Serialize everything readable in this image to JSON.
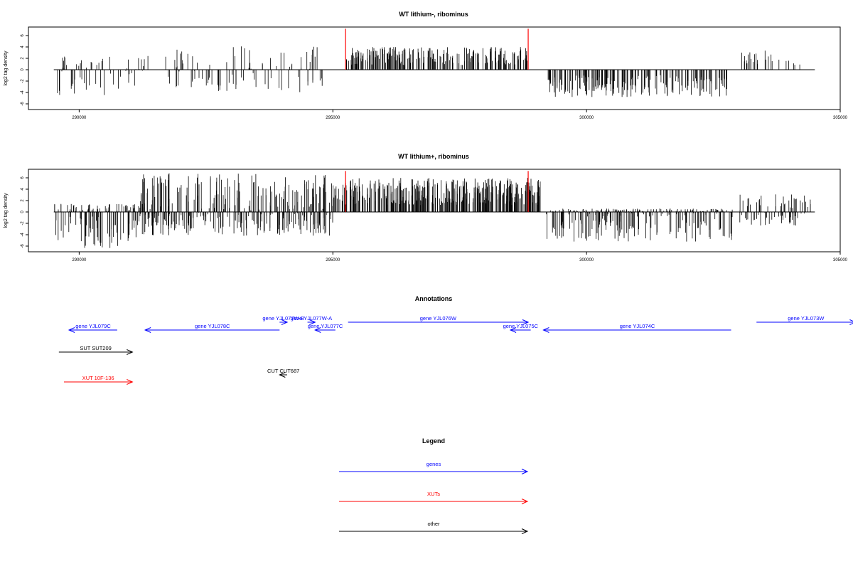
{
  "chart_data": [
    {
      "type": "bar",
      "title": "WT lithium-, ribominus",
      "ylabel": "log2 tag density",
      "xlabel": "",
      "xlim": [
        289000,
        305000
      ],
      "ylim": [
        -7,
        7.5
      ],
      "xticks": [
        "290000",
        "295000",
        "300000",
        "305000"
      ],
      "yticks": [
        "-6",
        "-4",
        "-2",
        "0",
        "2",
        "4",
        "6"
      ],
      "baseline": [
        289500,
        304500
      ],
      "markers": [
        295250,
        298850
      ],
      "segments": [
        {
          "from": 289500,
          "to": 291800,
          "min": -4.8,
          "max": 2.5,
          "density": 0.025,
          "seed": 11
        },
        {
          "from": 291800,
          "to": 294800,
          "min": -4.2,
          "max": 4.2,
          "density": 0.03,
          "seed": 23
        },
        {
          "from": 295200,
          "to": 298900,
          "min": 0,
          "max": 4.0,
          "density": 0.06,
          "seed": 37
        },
        {
          "from": 299200,
          "to": 302800,
          "min": -4.8,
          "max": 0,
          "density": 0.05,
          "seed": 41
        },
        {
          "from": 303050,
          "to": 304300,
          "min": 0,
          "max": 3.8,
          "density": 0.02,
          "seed": 53
        }
      ]
    },
    {
      "type": "bar",
      "title": "WT lithium+, ribominus",
      "ylabel": "log2 tag density",
      "xlabel": "",
      "xlim": [
        289000,
        305000
      ],
      "ylim": [
        -7,
        7.5
      ],
      "xticks": [
        "290000",
        "295000",
        "300000",
        "305000"
      ],
      "yticks": [
        "-6",
        "-4",
        "-2",
        "0",
        "2",
        "4",
        "6"
      ],
      "baseline": [
        289500,
        304500
      ],
      "markers": [
        295250,
        298850
      ],
      "segments": [
        {
          "from": 289500,
          "to": 291200,
          "min": -6.5,
          "max": 1.5,
          "density": 0.07,
          "seed": 61
        },
        {
          "from": 291200,
          "to": 295000,
          "min": -4.2,
          "max": 6.8,
          "density": 0.09,
          "seed": 67
        },
        {
          "from": 295000,
          "to": 299100,
          "min": 0,
          "max": 6.0,
          "density": 0.09,
          "seed": 71
        },
        {
          "from": 299200,
          "to": 302900,
          "min": -5.2,
          "max": 0.6,
          "density": 0.07,
          "seed": 79
        },
        {
          "from": 303000,
          "to": 304500,
          "min": -2.5,
          "max": 3.2,
          "density": 0.05,
          "seed": 83
        }
      ]
    }
  ],
  "annotations": {
    "title": "Annotations",
    "items": [
      {
        "label": "gene YJL079C",
        "color": "#0000ff",
        "from": 290750,
        "to": 289800,
        "row": 1
      },
      {
        "label": "gene YJL078C",
        "color": "#0000ff",
        "from": 293950,
        "to": 291300,
        "row": 1
      },
      {
        "label": "gene YJL077W-B",
        "color": "#0000ff",
        "from": 293950,
        "to": 294100,
        "row": 0
      },
      {
        "label": "gene YJL077W-A",
        "color": "#0000ff",
        "from": 294500,
        "to": 294650,
        "row": 0
      },
      {
        "label": "gene YJL077C",
        "color": "#0000ff",
        "from": 295050,
        "to": 294650,
        "row": 1
      },
      {
        "label": "gene YJL076W",
        "color": "#0000ff",
        "from": 295300,
        "to": 298850,
        "row": 0
      },
      {
        "label": "gene YJL075C",
        "color": "#0000ff",
        "from": 298900,
        "to": 298500,
        "row": 1
      },
      {
        "label": "gene YJL074C",
        "color": "#0000ff",
        "from": 302850,
        "to": 299150,
        "row": 1
      },
      {
        "label": "gene YJL073W",
        "color": "#0000ff",
        "from": 303350,
        "to": 305300,
        "row": 0
      },
      {
        "label": "SUT SUT209",
        "color": "#000000",
        "from": 289600,
        "to": 291050,
        "row": 2
      },
      {
        "label": "XUT 10F-136",
        "color": "#ff0000",
        "from": 289700,
        "to": 291050,
        "row": 4
      },
      {
        "label": "CUT CUT687",
        "color": "#000000",
        "from": 294100,
        "to": 293950,
        "row": 3
      }
    ]
  },
  "legend": {
    "title": "Legend",
    "items": [
      {
        "label": "genes",
        "color": "#0000ff"
      },
      {
        "label": "XUTs",
        "color": "#ff0000"
      },
      {
        "label": "other",
        "color": "#000000"
      }
    ]
  }
}
